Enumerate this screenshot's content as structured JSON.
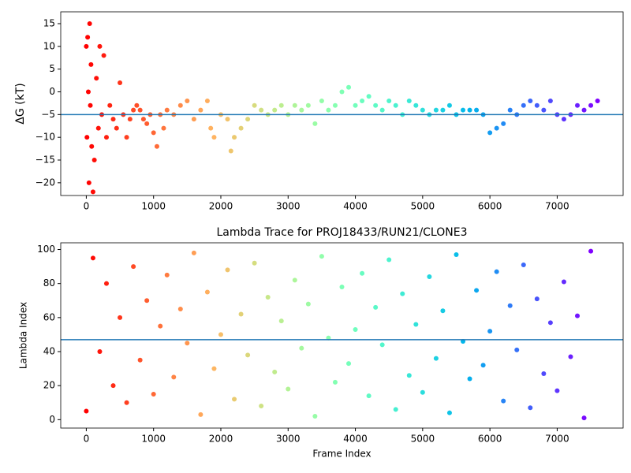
{
  "chart_data": [
    {
      "type": "scatter",
      "ylabel": "ΔG (kT)",
      "colormap": "rainbow_r",
      "hline": -5,
      "hline_color": "#1f77b4",
      "xlim": [
        -380,
        7980
      ],
      "ylim": [
        -22.8,
        17.6
      ],
      "xticks": [
        0,
        1000,
        2000,
        3000,
        4000,
        5000,
        6000,
        7000
      ],
      "yticks": [
        {
          "value": -20,
          "label": "−20"
        },
        {
          "value": -15,
          "label": "−15"
        },
        {
          "value": -10,
          "label": "−10"
        },
        {
          "value": -5,
          "label": "−5"
        },
        0,
        5,
        10,
        15
      ],
      "x": [
        0,
        10,
        20,
        30,
        40,
        50,
        60,
        70,
        80,
        100,
        120,
        150,
        180,
        200,
        230,
        260,
        300,
        350,
        400,
        450,
        500,
        550,
        600,
        650,
        700,
        750,
        800,
        850,
        900,
        950,
        1000,
        1050,
        1100,
        1150,
        1200,
        1300,
        1400,
        1500,
        1600,
        1700,
        1800,
        1850,
        1900,
        2000,
        2100,
        2150,
        2200,
        2300,
        2400,
        2500,
        2600,
        2700,
        2800,
        2900,
        3000,
        3100,
        3200,
        3300,
        3400,
        3500,
        3600,
        3700,
        3800,
        3900,
        4000,
        4100,
        4200,
        4300,
        4400,
        4500,
        4600,
        4700,
        4800,
        4900,
        5000,
        5100,
        5200,
        5300,
        5400,
        5500,
        5600,
        5700,
        5800,
        5900,
        6000,
        6100,
        6200,
        6300,
        6400,
        6500,
        6600,
        6700,
        6800,
        6900,
        7000,
        7100,
        7200,
        7300,
        7400,
        7500,
        7600
      ],
      "values": [
        10,
        -10,
        12,
        0,
        -20,
        15,
        -3,
        6,
        -12,
        -22,
        -15,
        3,
        -8,
        10,
        -5,
        8,
        -10,
        -3,
        -6,
        -8,
        2,
        -5,
        -10,
        -6,
        -4,
        -3,
        -4,
        -6,
        -7,
        -5,
        -9,
        -12,
        -5,
        -8,
        -4,
        -5,
        -3,
        -2,
        -6,
        -4,
        -2,
        -8,
        -10,
        -5,
        -6,
        -13,
        -10,
        -8,
        -6,
        -3,
        -4,
        -5,
        -4,
        -3,
        -5,
        -3,
        -4,
        -3,
        -7,
        -2,
        -4,
        -3,
        0,
        1,
        -3,
        -2,
        -1,
        -3,
        -4,
        -2,
        -3,
        -5,
        -2,
        -3,
        -4,
        -5,
        -4,
        -4,
        -3,
        -5,
        -4,
        -4,
        -4,
        -5,
        -9,
        -8,
        -7,
        -4,
        -5,
        -3,
        -2,
        -3,
        -4,
        -2,
        -5,
        -6,
        -5,
        -3,
        -4,
        -3,
        -2
      ]
    },
    {
      "type": "scatter",
      "title": "Lambda Trace for PROJ18433/RUN21/CLONE3",
      "xlabel": "Frame Index",
      "ylabel": "Lambda Index",
      "colormap": "rainbow_r",
      "hline": 47,
      "hline_color": "#1f77b4",
      "xlim": [
        -380,
        7980
      ],
      "ylim": [
        -4.95,
        103.95
      ],
      "xticks": [
        0,
        1000,
        2000,
        3000,
        4000,
        5000,
        6000,
        7000
      ],
      "yticks": [
        0,
        20,
        40,
        60,
        80,
        100
      ],
      "x": [
        0,
        100,
        200,
        300,
        400,
        500,
        600,
        700,
        800,
        900,
        1000,
        1100,
        1200,
        1300,
        1400,
        1500,
        1600,
        1700,
        1800,
        1900,
        2000,
        2100,
        2200,
        2300,
        2400,
        2500,
        2600,
        2700,
        2800,
        2900,
        3000,
        3100,
        3200,
        3300,
        3400,
        3500,
        3600,
        3700,
        3800,
        3900,
        4000,
        4100,
        4200,
        4300,
        4400,
        4500,
        4600,
        4700,
        4800,
        4900,
        5000,
        5100,
        5200,
        5300,
        5400,
        5500,
        5600,
        5700,
        5800,
        5900,
        6000,
        6100,
        6200,
        6300,
        6400,
        6500,
        6600,
        6700,
        6800,
        6900,
        7000,
        7100,
        7200,
        7300,
        7400,
        7500
      ],
      "values": [
        5,
        95,
        40,
        80,
        20,
        60,
        10,
        90,
        35,
        70,
        15,
        55,
        85,
        25,
        65,
        45,
        98,
        3,
        75,
        30,
        50,
        88,
        12,
        62,
        38,
        92,
        8,
        72,
        28,
        58,
        18,
        82,
        42,
        68,
        2,
        96,
        48,
        22,
        78,
        33,
        53,
        86,
        14,
        66,
        44,
        94,
        6,
        74,
        26,
        56,
        16,
        84,
        36,
        64,
        4,
        97,
        46,
        24,
        76,
        32,
        52,
        87,
        11,
        67,
        41,
        91,
        7,
        71,
        27,
        57,
        17,
        81,
        37,
        61,
        1,
        99
      ]
    }
  ]
}
